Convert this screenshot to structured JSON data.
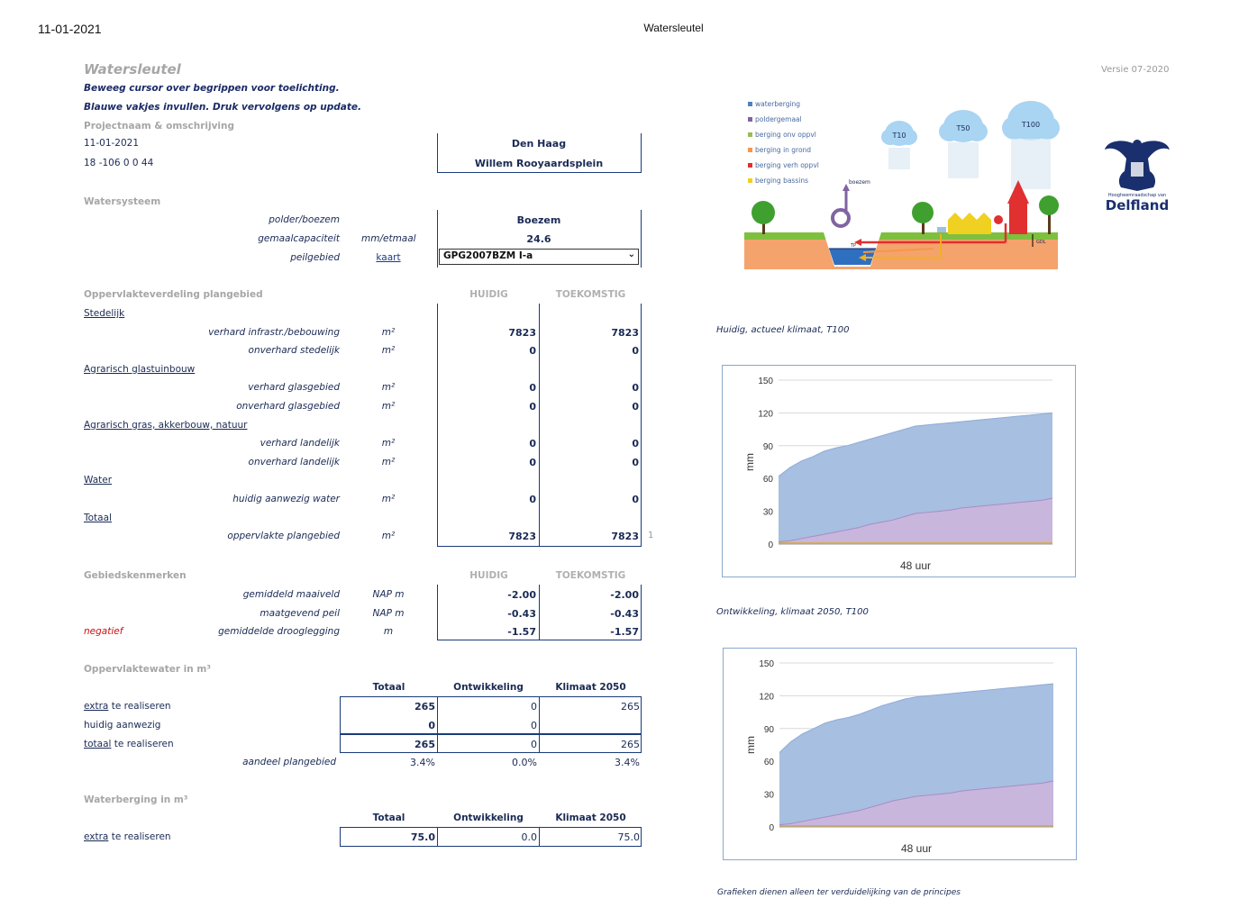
{
  "header": {
    "print_date": "11-01-2021",
    "print_title": "Watersleutel"
  },
  "app": {
    "title": "Watersleutel",
    "version": "Versie 07-2020",
    "instructions": [
      "Beweeg cursor over begrippen voor toelichting.",
      "Blauwe vakjes invullen. Druk vervolgens op update."
    ]
  },
  "project": {
    "section": "Projectnaam & omschrijving",
    "date": "11-01-2021",
    "code": "18 -106 0 0 44",
    "name": "Den Haag",
    "description": "Willem Rooyaardsplein"
  },
  "watersysteem": {
    "section": "Watersysteem",
    "rows": [
      {
        "label": "polder/boezem",
        "unit": "",
        "value": "Boezem"
      },
      {
        "label": "gemaalcapaciteit",
        "unit": "mm/etmaal",
        "value": "24.6"
      },
      {
        "label": "peilgebied",
        "unit": "kaart",
        "value": "GPG2007BZM I-a"
      }
    ]
  },
  "oppervlakte": {
    "section": "Oppervlakteverdeling plangebied",
    "col_huidig": "HUIDIG",
    "col_toekomstig": "TOEKOMSTIG",
    "groups": [
      {
        "name": "Stedelijk",
        "rows": [
          {
            "label": "verhard infrastr./bebouwing",
            "unit": "m²",
            "huidig": "7823",
            "toekomstig": "7823"
          },
          {
            "label": "onverhard stedelijk",
            "unit": "m²",
            "huidig": "0",
            "toekomstig": "0"
          }
        ]
      },
      {
        "name": "Agrarisch glastuinbouw",
        "rows": [
          {
            "label": "verhard glasgebied",
            "unit": "m²",
            "huidig": "0",
            "toekomstig": "0"
          },
          {
            "label": "onverhard glasgebied",
            "unit": "m²",
            "huidig": "0",
            "toekomstig": "0"
          }
        ]
      },
      {
        "name": "Agrarisch gras, akkerbouw, natuur",
        "rows": [
          {
            "label": "verhard landelijk",
            "unit": "m²",
            "huidig": "0",
            "toekomstig": "0"
          },
          {
            "label": "onverhard landelijk",
            "unit": "m²",
            "huidig": "0",
            "toekomstig": "0"
          }
        ]
      },
      {
        "name": "Water",
        "rows": [
          {
            "label": "huidig aanwezig water",
            "unit": "m²",
            "huidig": "0",
            "toekomstig": "0"
          }
        ]
      },
      {
        "name": "Totaal",
        "rows": [
          {
            "label": "oppervlakte plangebied",
            "unit": "m²",
            "huidig": "7823",
            "toekomstig": "7823"
          }
        ]
      }
    ],
    "footnote": "1"
  },
  "gebied": {
    "section": "Gebiedskenmerken",
    "col_huidig": "HUIDIG",
    "col_toekomstig": "TOEKOMSTIG",
    "negatief": "negatief",
    "rows": [
      {
        "label": "gemiddeld maaiveld",
        "unit": "NAP m",
        "huidig": "-2.00",
        "toekomstig": "-2.00"
      },
      {
        "label": "maatgevend peil",
        "unit": "NAP m",
        "huidig": "-0.43",
        "toekomstig": "-0.43"
      },
      {
        "label": "gemiddelde drooglegging",
        "unit": "m",
        "huidig": "-1.57",
        "toekomstig": "-1.57"
      }
    ]
  },
  "oppwater": {
    "section": "Oppervlaktewater in m³",
    "cols": [
      "Totaal",
      "Ontwikkeling",
      "Klimaat 2050"
    ],
    "rows": [
      {
        "link": "extra",
        "rest": " te realiseren",
        "totaal": "265",
        "ontw": "0",
        "klimaat": "265"
      },
      {
        "link": "",
        "rest": "huidig aanwezig",
        "totaal": "0",
        "ontw": "0",
        "klimaat": ""
      },
      {
        "link": "totaal",
        "rest": " te realiseren",
        "totaal": "265",
        "ontw": "0",
        "klimaat": "265"
      }
    ],
    "aandeel": {
      "label": "aandeel plangebied",
      "totaal": "3.4%",
      "ontw": "0.0%",
      "klimaat": "3.4%"
    }
  },
  "waterberging": {
    "section": "Waterberging in m³",
    "cols": [
      "Totaal",
      "Ontwikkeling",
      "Klimaat 2050"
    ],
    "row": {
      "link": "extra",
      "rest": " te realiseren",
      "totaal": "75.0",
      "ontw": "0.0",
      "klimaat": "75.0"
    }
  },
  "illustration": {
    "legend": [
      {
        "label": "waterberging",
        "color": "#4f81bd"
      },
      {
        "label": "poldergemaal",
        "color": "#8064a2"
      },
      {
        "label": "berging onv oppvl",
        "color": "#9bbb59"
      },
      {
        "label": "berging in grond",
        "color": "#f79646"
      },
      {
        "label": "berging verh oppvl",
        "color": "#e03030"
      },
      {
        "label": "berging bassins",
        "color": "#f0d020"
      }
    ],
    "clouds": [
      "T10",
      "T50",
      "T100"
    ],
    "boezem": "boezem",
    "tp": "TP",
    "gdl": "GDL"
  },
  "logo": {
    "small": "Hoogheemraadschap van",
    "name": "Delfland"
  },
  "charts": {
    "caption1": "Huidig, actueel klimaat, T100",
    "caption2": "Ontwikkeling, klimaat 2050, T100",
    "footer": "Grafieken dienen alleen ter verduidelijking van de principes"
  },
  "chart_data": [
    {
      "type": "area",
      "title": "",
      "xlabel": "48 uur",
      "ylabel": "mm",
      "ylim": [
        0,
        150
      ],
      "yticks": [
        "0",
        "30",
        "60",
        "90",
        "120",
        "150"
      ],
      "x": [
        0,
        1,
        2,
        3,
        4,
        5,
        6,
        7,
        8,
        9,
        10,
        11,
        12,
        13,
        14,
        15,
        16,
        17,
        18,
        19,
        20,
        21,
        22,
        23,
        24
      ],
      "series": [
        {
          "color": "#a7bfe0",
          "values": [
            62,
            70,
            76,
            80,
            85,
            88,
            90,
            93,
            96,
            99,
            102,
            105,
            108,
            109,
            110,
            111,
            112,
            113,
            114,
            115,
            116,
            117,
            118,
            119,
            120
          ]
        },
        {
          "color": "#c8b6dd",
          "values": [
            2,
            3,
            5,
            7,
            9,
            11,
            13,
            15,
            18,
            20,
            22,
            25,
            28,
            29,
            30,
            31,
            33,
            34,
            35,
            36,
            37,
            38,
            39,
            40,
            42
          ]
        },
        {
          "color": "#e8c87a",
          "values": [
            1,
            1,
            1,
            1,
            1,
            1,
            1,
            1,
            1,
            1,
            1,
            1,
            1,
            1,
            1,
            1,
            1,
            1,
            1,
            1,
            1,
            1,
            1,
            1,
            1
          ]
        }
      ]
    },
    {
      "type": "area",
      "title": "",
      "xlabel": "48 uur",
      "ylabel": "mm",
      "ylim": [
        0,
        150
      ],
      "yticks": [
        "0",
        "30",
        "60",
        "90",
        "120",
        "150"
      ],
      "x": [
        0,
        1,
        2,
        3,
        4,
        5,
        6,
        7,
        8,
        9,
        10,
        11,
        12,
        13,
        14,
        15,
        16,
        17,
        18,
        19,
        20,
        21,
        22,
        23,
        24
      ],
      "series": [
        {
          "color": "#a7bfe0",
          "values": [
            68,
            78,
            85,
            90,
            95,
            98,
            100,
            103,
            107,
            111,
            114,
            117,
            119,
            120,
            121,
            122,
            123,
            124,
            125,
            126,
            127,
            128,
            129,
            130,
            131
          ]
        },
        {
          "color": "#c8b6dd",
          "values": [
            2,
            3,
            5,
            7,
            9,
            11,
            13,
            15,
            18,
            21,
            24,
            26,
            28,
            29,
            30,
            31,
            33,
            34,
            35,
            36,
            37,
            38,
            39,
            40,
            42
          ]
        },
        {
          "color": "#e8c87a",
          "values": [
            1,
            1,
            1,
            1,
            1,
            1,
            1,
            1,
            1,
            1,
            1,
            1,
            1,
            1,
            1,
            1,
            1,
            1,
            1,
            1,
            1,
            1,
            1,
            1,
            1
          ]
        }
      ]
    }
  ]
}
